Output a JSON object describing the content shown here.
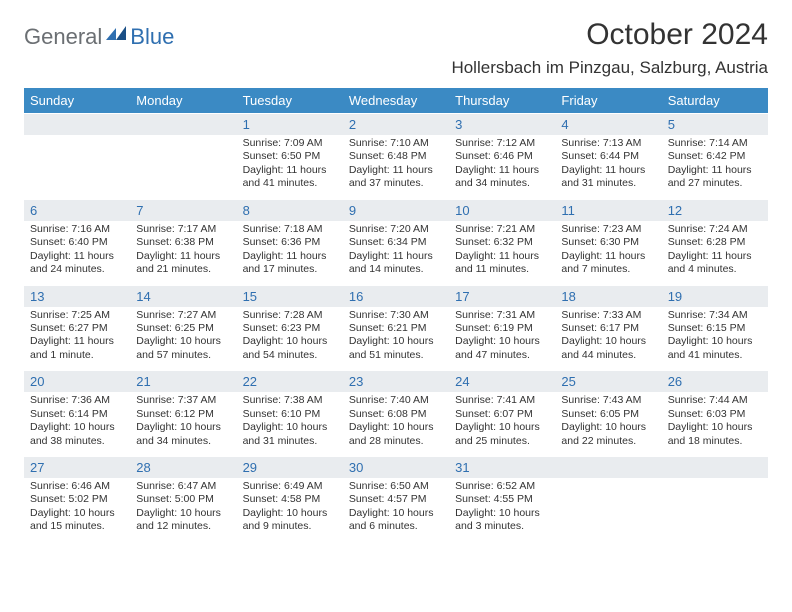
{
  "logo": {
    "general": "General",
    "blue": "Blue"
  },
  "title": "October 2024",
  "location": "Hollersbach im Pinzgau, Salzburg, Austria",
  "colors": {
    "header_bg": "#3b8ac4",
    "daynum_bg": "#e9ecef",
    "daynum_color": "#2f6fb0",
    "text": "#333333",
    "logo_gray": "#6b6f73",
    "logo_blue": "#2f6fb0"
  },
  "weekdays": [
    "Sunday",
    "Monday",
    "Tuesday",
    "Wednesday",
    "Thursday",
    "Friday",
    "Saturday"
  ],
  "weeks": [
    [
      {
        "n": "",
        "lines": []
      },
      {
        "n": "",
        "lines": []
      },
      {
        "n": "1",
        "lines": [
          "Sunrise: 7:09 AM",
          "Sunset: 6:50 PM",
          "Daylight: 11 hours",
          "and 41 minutes."
        ]
      },
      {
        "n": "2",
        "lines": [
          "Sunrise: 7:10 AM",
          "Sunset: 6:48 PM",
          "Daylight: 11 hours",
          "and 37 minutes."
        ]
      },
      {
        "n": "3",
        "lines": [
          "Sunrise: 7:12 AM",
          "Sunset: 6:46 PM",
          "Daylight: 11 hours",
          "and 34 minutes."
        ]
      },
      {
        "n": "4",
        "lines": [
          "Sunrise: 7:13 AM",
          "Sunset: 6:44 PM",
          "Daylight: 11 hours",
          "and 31 minutes."
        ]
      },
      {
        "n": "5",
        "lines": [
          "Sunrise: 7:14 AM",
          "Sunset: 6:42 PM",
          "Daylight: 11 hours",
          "and 27 minutes."
        ]
      }
    ],
    [
      {
        "n": "6",
        "lines": [
          "Sunrise: 7:16 AM",
          "Sunset: 6:40 PM",
          "Daylight: 11 hours",
          "and 24 minutes."
        ]
      },
      {
        "n": "7",
        "lines": [
          "Sunrise: 7:17 AM",
          "Sunset: 6:38 PM",
          "Daylight: 11 hours",
          "and 21 minutes."
        ]
      },
      {
        "n": "8",
        "lines": [
          "Sunrise: 7:18 AM",
          "Sunset: 6:36 PM",
          "Daylight: 11 hours",
          "and 17 minutes."
        ]
      },
      {
        "n": "9",
        "lines": [
          "Sunrise: 7:20 AM",
          "Sunset: 6:34 PM",
          "Daylight: 11 hours",
          "and 14 minutes."
        ]
      },
      {
        "n": "10",
        "lines": [
          "Sunrise: 7:21 AM",
          "Sunset: 6:32 PM",
          "Daylight: 11 hours",
          "and 11 minutes."
        ]
      },
      {
        "n": "11",
        "lines": [
          "Sunrise: 7:23 AM",
          "Sunset: 6:30 PM",
          "Daylight: 11 hours",
          "and 7 minutes."
        ]
      },
      {
        "n": "12",
        "lines": [
          "Sunrise: 7:24 AM",
          "Sunset: 6:28 PM",
          "Daylight: 11 hours",
          "and 4 minutes."
        ]
      }
    ],
    [
      {
        "n": "13",
        "lines": [
          "Sunrise: 7:25 AM",
          "Sunset: 6:27 PM",
          "Daylight: 11 hours",
          "and 1 minute."
        ]
      },
      {
        "n": "14",
        "lines": [
          "Sunrise: 7:27 AM",
          "Sunset: 6:25 PM",
          "Daylight: 10 hours",
          "and 57 minutes."
        ]
      },
      {
        "n": "15",
        "lines": [
          "Sunrise: 7:28 AM",
          "Sunset: 6:23 PM",
          "Daylight: 10 hours",
          "and 54 minutes."
        ]
      },
      {
        "n": "16",
        "lines": [
          "Sunrise: 7:30 AM",
          "Sunset: 6:21 PM",
          "Daylight: 10 hours",
          "and 51 minutes."
        ]
      },
      {
        "n": "17",
        "lines": [
          "Sunrise: 7:31 AM",
          "Sunset: 6:19 PM",
          "Daylight: 10 hours",
          "and 47 minutes."
        ]
      },
      {
        "n": "18",
        "lines": [
          "Sunrise: 7:33 AM",
          "Sunset: 6:17 PM",
          "Daylight: 10 hours",
          "and 44 minutes."
        ]
      },
      {
        "n": "19",
        "lines": [
          "Sunrise: 7:34 AM",
          "Sunset: 6:15 PM",
          "Daylight: 10 hours",
          "and 41 minutes."
        ]
      }
    ],
    [
      {
        "n": "20",
        "lines": [
          "Sunrise: 7:36 AM",
          "Sunset: 6:14 PM",
          "Daylight: 10 hours",
          "and 38 minutes."
        ]
      },
      {
        "n": "21",
        "lines": [
          "Sunrise: 7:37 AM",
          "Sunset: 6:12 PM",
          "Daylight: 10 hours",
          "and 34 minutes."
        ]
      },
      {
        "n": "22",
        "lines": [
          "Sunrise: 7:38 AM",
          "Sunset: 6:10 PM",
          "Daylight: 10 hours",
          "and 31 minutes."
        ]
      },
      {
        "n": "23",
        "lines": [
          "Sunrise: 7:40 AM",
          "Sunset: 6:08 PM",
          "Daylight: 10 hours",
          "and 28 minutes."
        ]
      },
      {
        "n": "24",
        "lines": [
          "Sunrise: 7:41 AM",
          "Sunset: 6:07 PM",
          "Daylight: 10 hours",
          "and 25 minutes."
        ]
      },
      {
        "n": "25",
        "lines": [
          "Sunrise: 7:43 AM",
          "Sunset: 6:05 PM",
          "Daylight: 10 hours",
          "and 22 minutes."
        ]
      },
      {
        "n": "26",
        "lines": [
          "Sunrise: 7:44 AM",
          "Sunset: 6:03 PM",
          "Daylight: 10 hours",
          "and 18 minutes."
        ]
      }
    ],
    [
      {
        "n": "27",
        "lines": [
          "Sunrise: 6:46 AM",
          "Sunset: 5:02 PM",
          "Daylight: 10 hours",
          "and 15 minutes."
        ]
      },
      {
        "n": "28",
        "lines": [
          "Sunrise: 6:47 AM",
          "Sunset: 5:00 PM",
          "Daylight: 10 hours",
          "and 12 minutes."
        ]
      },
      {
        "n": "29",
        "lines": [
          "Sunrise: 6:49 AM",
          "Sunset: 4:58 PM",
          "Daylight: 10 hours",
          "and 9 minutes."
        ]
      },
      {
        "n": "30",
        "lines": [
          "Sunrise: 6:50 AM",
          "Sunset: 4:57 PM",
          "Daylight: 10 hours",
          "and 6 minutes."
        ]
      },
      {
        "n": "31",
        "lines": [
          "Sunrise: 6:52 AM",
          "Sunset: 4:55 PM",
          "Daylight: 10 hours",
          "and 3 minutes."
        ]
      },
      {
        "n": "",
        "lines": []
      },
      {
        "n": "",
        "lines": []
      }
    ]
  ]
}
